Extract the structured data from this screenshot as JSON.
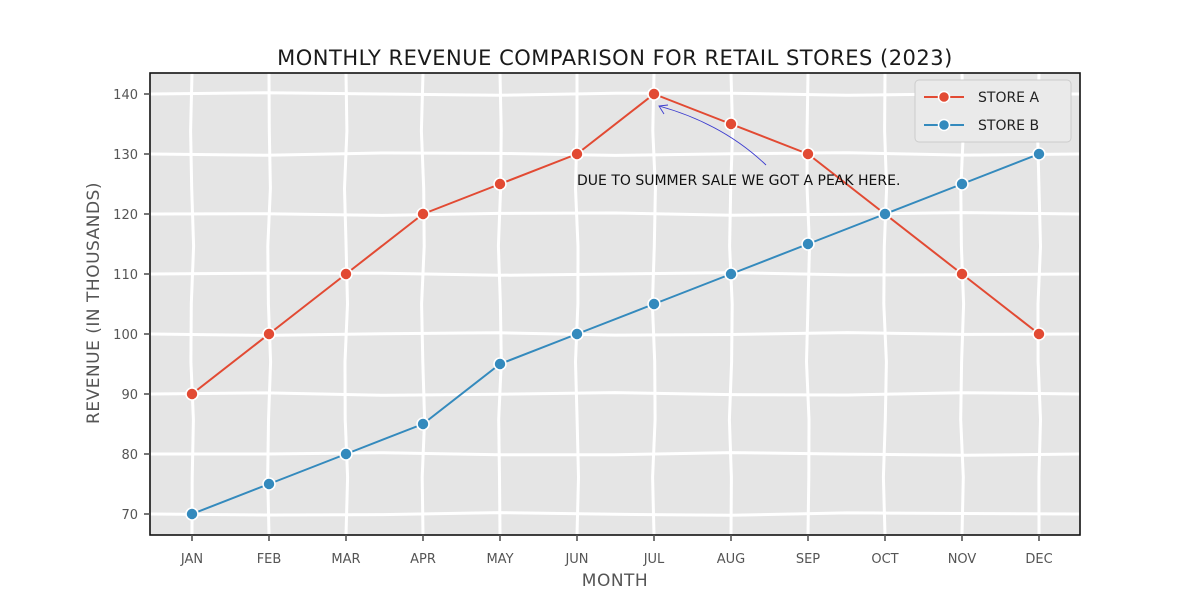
{
  "chart_data": {
    "type": "line",
    "title": "MONTHLY REVENUE COMPARISON FOR RETAIL STORES (2023)",
    "xlabel": "MONTH",
    "ylabel": "REVENUE (IN THOUSANDS)",
    "categories": [
      "JAN",
      "FEB",
      "MAR",
      "APR",
      "MAY",
      "JUN",
      "JUL",
      "AUG",
      "SEP",
      "OCT",
      "NOV",
      "DEC"
    ],
    "yticks": [
      70,
      80,
      90,
      100,
      110,
      120,
      130,
      140
    ],
    "ylim": [
      66.5,
      143.5
    ],
    "grid": true,
    "legend_position": "top-right",
    "series": [
      {
        "name": "STORE A",
        "color": "#e24a33",
        "values": [
          90,
          100,
          110,
          120,
          125,
          130,
          140,
          135,
          130,
          120,
          110,
          100
        ]
      },
      {
        "name": "STORE B",
        "color": "#348abd",
        "values": [
          70,
          75,
          80,
          85,
          95,
          100,
          105,
          110,
          115,
          120,
          125,
          130
        ]
      }
    ],
    "annotation": {
      "text": "DUE TO SUMMER SALE WE GOT A PEAK HERE.",
      "target_category": "JUL",
      "target_value": 140,
      "arrow_color": "#3b3bcf"
    }
  }
}
